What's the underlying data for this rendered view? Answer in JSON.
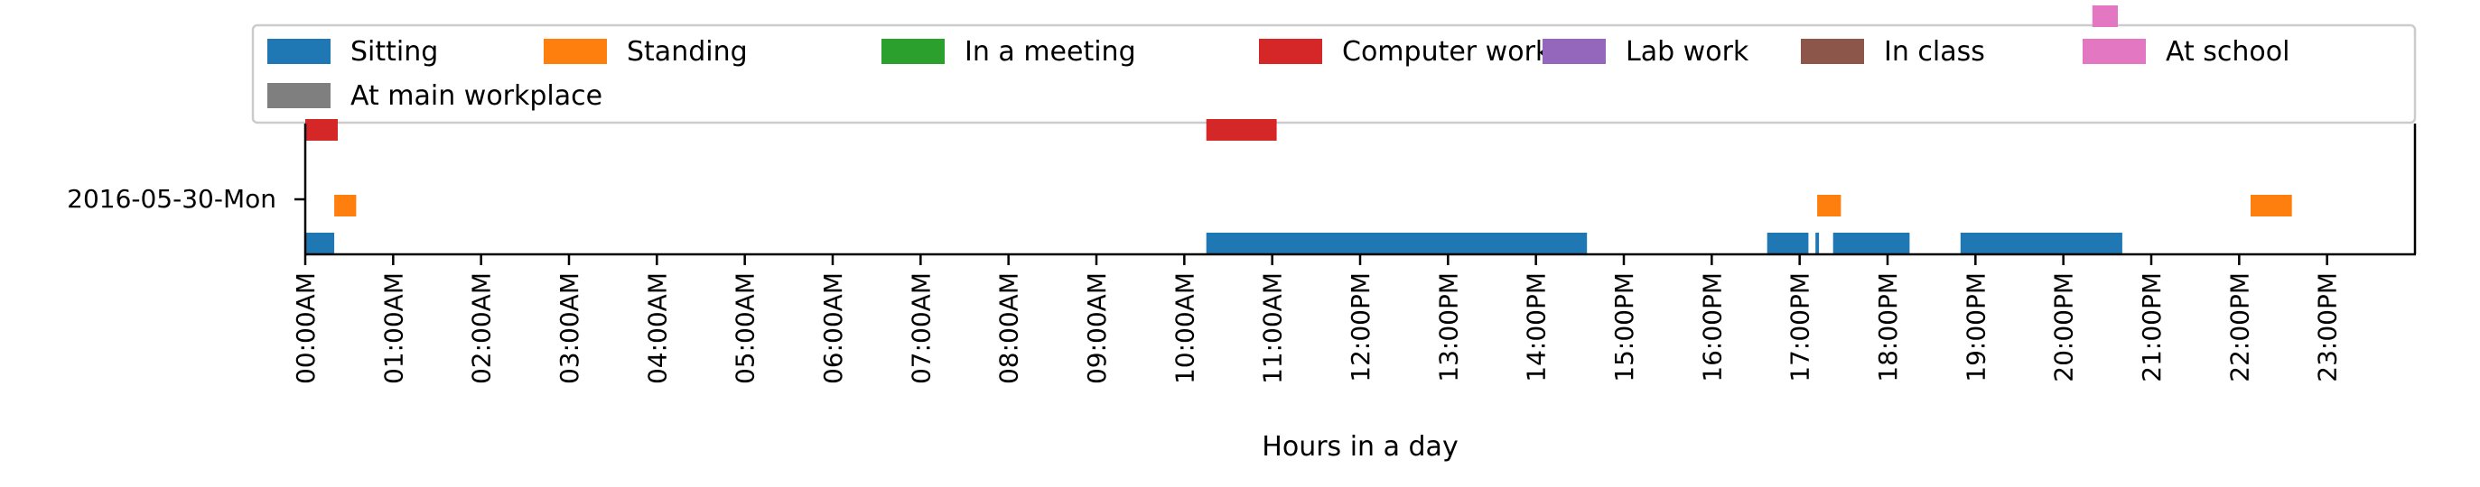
{
  "chart_data": {
    "type": "broken-barh",
    "xlabel": "Hours in a day",
    "xlim": [
      0,
      24
    ],
    "x_ticks": [
      {
        "value": 0,
        "label": "00:00AM"
      },
      {
        "value": 1,
        "label": "01:00AM"
      },
      {
        "value": 2,
        "label": "02:00AM"
      },
      {
        "value": 3,
        "label": "03:00AM"
      },
      {
        "value": 4,
        "label": "04:00AM"
      },
      {
        "value": 5,
        "label": "05:00AM"
      },
      {
        "value": 6,
        "label": "06:00AM"
      },
      {
        "value": 7,
        "label": "07:00AM"
      },
      {
        "value": 8,
        "label": "08:00AM"
      },
      {
        "value": 9,
        "label": "09:00AM"
      },
      {
        "value": 10,
        "label": "10:00AM"
      },
      {
        "value": 11,
        "label": "11:00AM"
      },
      {
        "value": 12,
        "label": "12:00PM"
      },
      {
        "value": 13,
        "label": "13:00PM"
      },
      {
        "value": 14,
        "label": "14:00PM"
      },
      {
        "value": 15,
        "label": "15:00PM"
      },
      {
        "value": 16,
        "label": "16:00PM"
      },
      {
        "value": 17,
        "label": "17:00PM"
      },
      {
        "value": 18,
        "label": "18:00PM"
      },
      {
        "value": 19,
        "label": "19:00PM"
      },
      {
        "value": 20,
        "label": "20:00PM"
      },
      {
        "value": 21,
        "label": "21:00PM"
      },
      {
        "value": 22,
        "label": "22:00PM"
      },
      {
        "value": 23,
        "label": "23:00PM"
      }
    ],
    "y_label_row": "2016-05-30-Mon",
    "legend_position": "top, above plot",
    "series": [
      {
        "name": "Sitting",
        "color": "#1f77b4",
        "level": 0,
        "intervals": [
          [
            0.0,
            0.33
          ],
          [
            10.25,
            14.58
          ],
          [
            16.63,
            17.1
          ],
          [
            17.18,
            17.22
          ],
          [
            17.38,
            18.25
          ],
          [
            18.83,
            20.67
          ]
        ]
      },
      {
        "name": "Standing",
        "color": "#ff7f0e",
        "level": 1,
        "intervals": [
          [
            0.33,
            0.58
          ],
          [
            17.2,
            17.47
          ],
          [
            22.13,
            22.6
          ]
        ]
      },
      {
        "name": "In a meeting",
        "color": "#2ca02c",
        "level": 2,
        "intervals": []
      },
      {
        "name": "Computer work",
        "color": "#d62728",
        "level": 3,
        "intervals": [
          [
            0.0,
            0.37
          ],
          [
            10.25,
            11.05
          ]
        ]
      },
      {
        "name": "Lab work",
        "color": "#9467bd",
        "level": 4,
        "intervals": []
      },
      {
        "name": "In class",
        "color": "#8c564b",
        "level": 5,
        "intervals": []
      },
      {
        "name": "At school",
        "color": "#e377c2",
        "level": 6,
        "intervals": [
          [
            20.33,
            20.62
          ]
        ]
      },
      {
        "name": "At main workplace",
        "color": "#7f7f7f",
        "level": 7,
        "intervals": []
      }
    ]
  }
}
